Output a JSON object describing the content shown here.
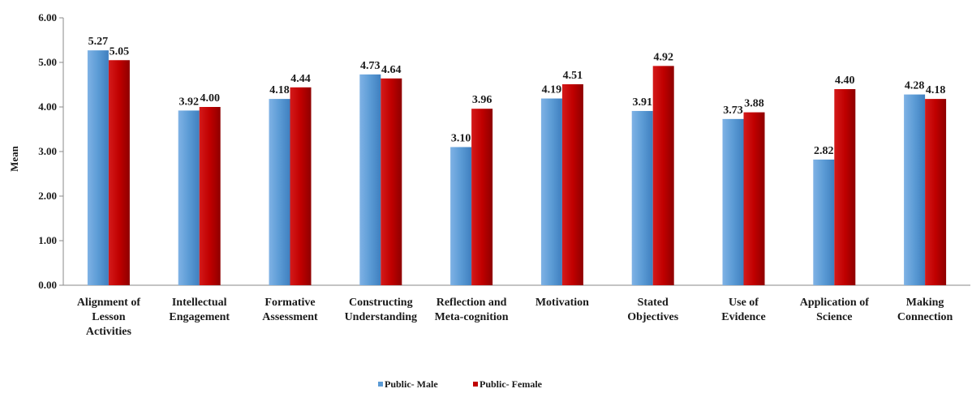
{
  "chart_data": {
    "type": "bar",
    "ylabel": "Mean",
    "xlabel": "",
    "ylim": [
      0,
      6
    ],
    "yticks": [
      "0.00",
      "1.00",
      "2.00",
      "3.00",
      "4.00",
      "5.00",
      "6.00"
    ],
    "categories": [
      [
        "Alignment of",
        "Lesson",
        "Activities"
      ],
      [
        "Intellectual",
        "Engagement"
      ],
      [
        "Formative",
        "Assessment"
      ],
      [
        "Constructing",
        "Understanding"
      ],
      [
        "Reflection and",
        "Meta-cognition"
      ],
      [
        "Motivation"
      ],
      [
        "Stated",
        "Objectives"
      ],
      [
        "Use of",
        "Evidence"
      ],
      [
        "Application of",
        "Science"
      ],
      [
        "Making",
        "Connection"
      ]
    ],
    "series": [
      {
        "name": "Public- Male",
        "color": "#5b9bd5",
        "values": [
          5.27,
          3.92,
          4.18,
          4.73,
          3.1,
          4.19,
          3.91,
          3.73,
          2.82,
          4.28
        ]
      },
      {
        "name": "Public- Female",
        "color": "#c00000",
        "values": [
          5.05,
          4.0,
          4.44,
          4.64,
          3.96,
          4.51,
          4.92,
          3.88,
          4.4,
          4.18
        ]
      }
    ],
    "legend": "bottom-center",
    "grid": false
  }
}
